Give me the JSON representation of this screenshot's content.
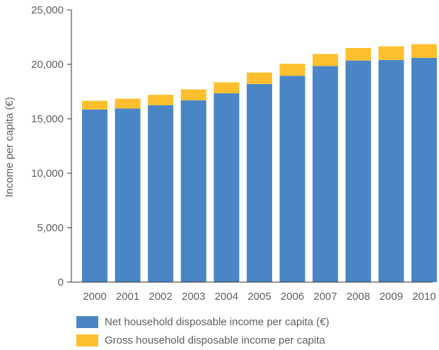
{
  "chart_data": {
    "type": "bar",
    "stacked": true,
    "title": "",
    "xlabel": "",
    "ylabel": "Income per capita (€)",
    "ylim": [
      0,
      25000
    ],
    "yticks": [
      0,
      5000,
      10000,
      15000,
      20000,
      25000
    ],
    "ytick_labels": [
      "0",
      "5,000",
      "10,000",
      "15,000",
      "20,000",
      "25,000"
    ],
    "categories": [
      "2000",
      "2001",
      "2002",
      "2003",
      "2004",
      "2005",
      "2006",
      "2007",
      "2008",
      "2009",
      "2010"
    ],
    "series": [
      {
        "name": "Net household disposable income per capita (€)",
        "color": "#4a86c5",
        "values": [
          15850,
          15950,
          16250,
          16700,
          17350,
          18200,
          18950,
          19850,
          20350,
          20400,
          20600
        ]
      },
      {
        "name": "Gross household disposable income per capita",
        "color": "#fdbf2d",
        "values": [
          800,
          900,
          950,
          1000,
          1000,
          1050,
          1100,
          1100,
          1150,
          1250,
          1250
        ]
      }
    ],
    "grid": false,
    "legend_position": "bottom-left"
  }
}
